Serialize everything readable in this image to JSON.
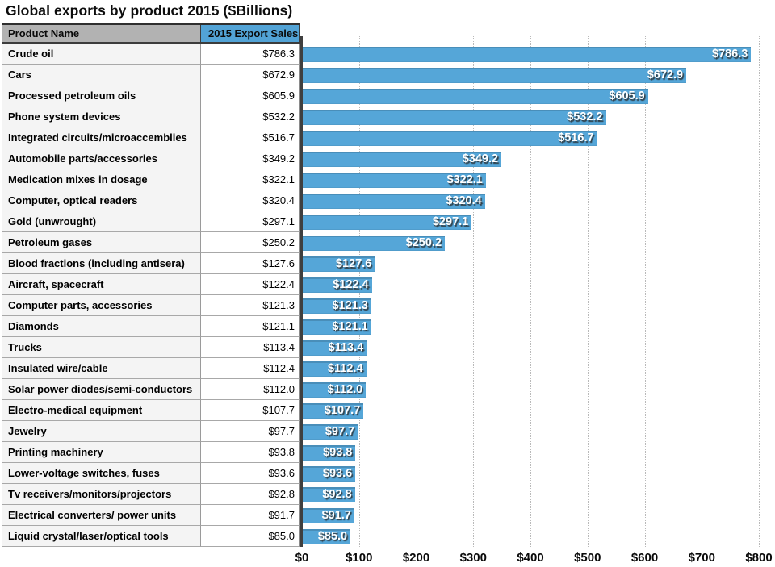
{
  "title": "Global exports by product 2015 ($Billions)",
  "colors": {
    "bar_blue": "#55a6d8",
    "header_blue": "#52a3d6",
    "header_gray": "#b2b2b2",
    "row_name_bg": "#f4f4f4",
    "row_value_bg": "#ffffff",
    "gridline_gray": "#b9b9b9",
    "axis_dark": "#3f3f3f",
    "bar_label_text": "#ffffff"
  },
  "table": {
    "columns": [
      "Product Name",
      "2015 Export Sales"
    ],
    "rows": [
      {
        "product": "Crude oil",
        "display": "$786.3",
        "value": 786.3
      },
      {
        "product": "Cars",
        "display": "$672.9",
        "value": 672.9
      },
      {
        "product": "Processed petroleum oils",
        "display": "$605.9",
        "value": 605.9
      },
      {
        "product": "Phone system devices",
        "display": "$532.2",
        "value": 532.2
      },
      {
        "product": "Integrated circuits/microaccemblies",
        "display": "$516.7",
        "value": 516.7
      },
      {
        "product": "Automobile parts/accessories",
        "display": "$349.2",
        "value": 349.2
      },
      {
        "product": "Medication mixes in dosage",
        "display": "$322.1",
        "value": 322.1
      },
      {
        "product": "Computer, optical readers",
        "display": "$320.4",
        "value": 320.4
      },
      {
        "product": "Gold (unwrought)",
        "display": "$297.1",
        "value": 297.1
      },
      {
        "product": "Petroleum gases",
        "display": "$250.2",
        "value": 250.2
      },
      {
        "product": "Blood fractions (including antisera)",
        "display": "$127.6",
        "value": 127.6
      },
      {
        "product": "Aircraft, spacecraft",
        "display": "$122.4",
        "value": 122.4
      },
      {
        "product": "Computer parts, accessories",
        "display": "$121.3",
        "value": 121.3
      },
      {
        "product": "Diamonds",
        "display": "$121.1",
        "value": 121.1
      },
      {
        "product": "Trucks",
        "display": "$113.4",
        "value": 113.4
      },
      {
        "product": "Insulated wire/cable",
        "display": "$112.4",
        "value": 112.4
      },
      {
        "product": "Solar power diodes/semi-conductors",
        "display": "$112.0",
        "value": 112.0
      },
      {
        "product": "Electro-medical equipment",
        "display": "$107.7",
        "value": 107.7
      },
      {
        "product": "Jewelry",
        "display": "$97.7",
        "value": 97.7
      },
      {
        "product": "Printing machinery",
        "display": "$93.8",
        "value": 93.8
      },
      {
        "product": "Lower-voltage switches, fuses",
        "display": "$93.6",
        "value": 93.6
      },
      {
        "product": "Tv receivers/monitors/projectors",
        "display": "$92.8",
        "value": 92.8
      },
      {
        "product": "Electrical converters/ power units",
        "display": "$91.7",
        "value": 91.7
      },
      {
        "product": "Liquid crystal/laser/optical tools",
        "display": "$85.0",
        "value": 85.0
      }
    ]
  },
  "chart_data": {
    "type": "bar",
    "orientation": "horizontal",
    "title": "Global exports by product 2015 ($Billions)",
    "categories": [
      "Crude oil",
      "Cars",
      "Processed petroleum oils",
      "Phone system devices",
      "Integrated circuits/microaccemblies",
      "Automobile parts/accessories",
      "Medication mixes in dosage",
      "Computer, optical readers",
      "Gold (unwrought)",
      "Petroleum gases",
      "Blood fractions (including antisera)",
      "Aircraft, spacecraft",
      "Computer parts, accessories",
      "Diamonds",
      "Trucks",
      "Insulated wire/cable",
      "Solar power diodes/semi-conductors",
      "Electro-medical equipment",
      "Jewelry",
      "Printing machinery",
      "Lower-voltage switches, fuses",
      "Tv receivers/monitors/projectors",
      "Electrical converters/ power units",
      "Liquid crystal/laser/optical tools"
    ],
    "values": [
      786.3,
      672.9,
      605.9,
      532.2,
      516.7,
      349.2,
      322.1,
      320.4,
      297.1,
      250.2,
      127.6,
      122.4,
      121.3,
      121.1,
      113.4,
      112.4,
      112.0,
      107.7,
      97.7,
      93.8,
      93.6,
      92.8,
      91.7,
      85.0
    ],
    "bar_labels": [
      "$786.3",
      "$672.9",
      "$605.9",
      "$532.2",
      "$516.7",
      "$349.2",
      "$322.1",
      "$320.4",
      "$297.1",
      "$250.2",
      "$127.6",
      "$122.4",
      "$121.3",
      "$121.1",
      "$113.4",
      "$112.4",
      "$112.0",
      "$107.7",
      "$97.7",
      "$93.8",
      "$93.6",
      "$92.8",
      "$91.7",
      "$85.0"
    ],
    "xlabel": "",
    "ylabel": "",
    "xlim": [
      0,
      800
    ],
    "x_ticks": [
      0,
      100,
      200,
      300,
      400,
      500,
      600,
      700,
      800
    ],
    "x_tick_labels": [
      "$0",
      "$100",
      "$200",
      "$300",
      "$400",
      "$500",
      "$600",
      "$700",
      "$800"
    ],
    "grid": "vertical-dotted",
    "legend": "none",
    "bar_color": "#55a6d8"
  }
}
